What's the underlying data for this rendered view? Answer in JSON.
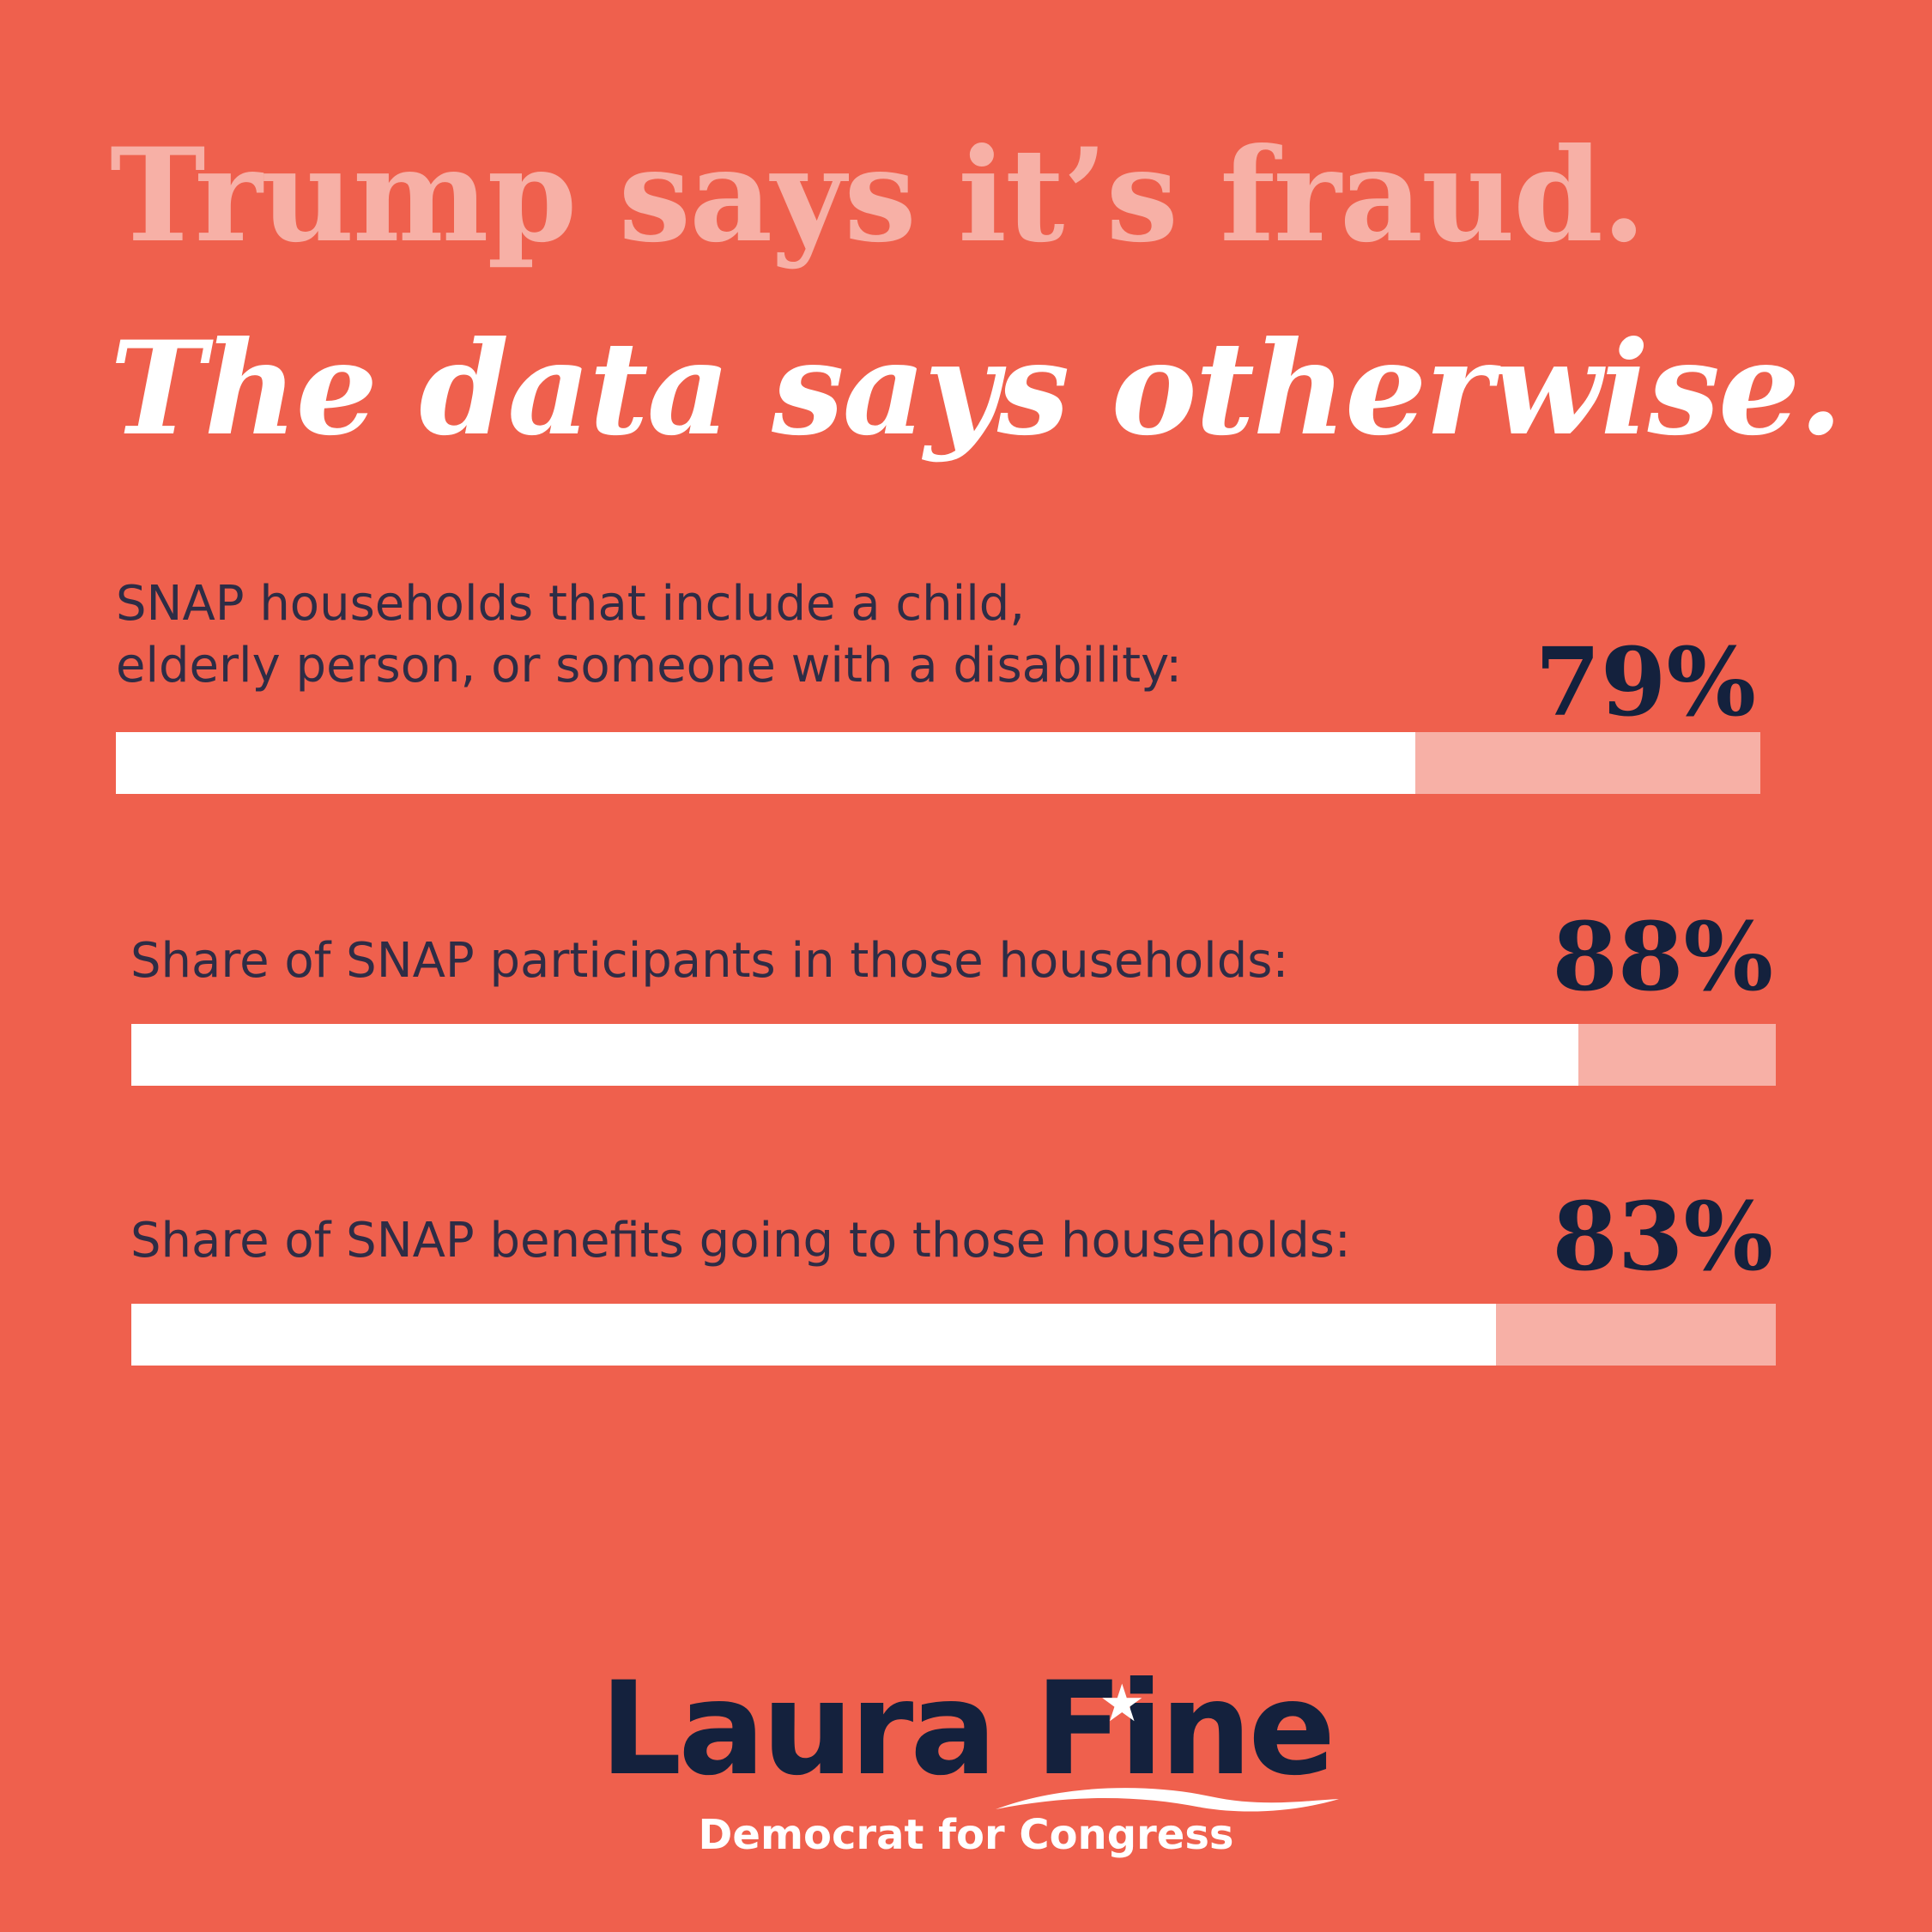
{
  "headline": {
    "line1": "Trump says it’s fraud.",
    "line2": "The data says otherwise."
  },
  "chart_data": {
    "type": "bar",
    "orientation": "horizontal",
    "unit": "%",
    "xlim": [
      0,
      100
    ],
    "items": [
      {
        "label": "SNAP households that include a child,\nelderly person, or someone with a disability:",
        "value": 79,
        "value_label": "79%"
      },
      {
        "label": "Share of SNAP participants in those households:",
        "value": 88,
        "value_label": "88%"
      },
      {
        "label": "Share of SNAP benefits going to those households:",
        "value": 83,
        "value_label": "83%"
      }
    ]
  },
  "logo": {
    "name": "Laura Fine",
    "tagline": "Democrat for Congress"
  },
  "colors": {
    "background": "#ef604d",
    "bar_fill": "#ffffff",
    "bar_track": "#f7b0a6",
    "headline_light": "#f7b0a6",
    "value_text": "#14213d"
  }
}
